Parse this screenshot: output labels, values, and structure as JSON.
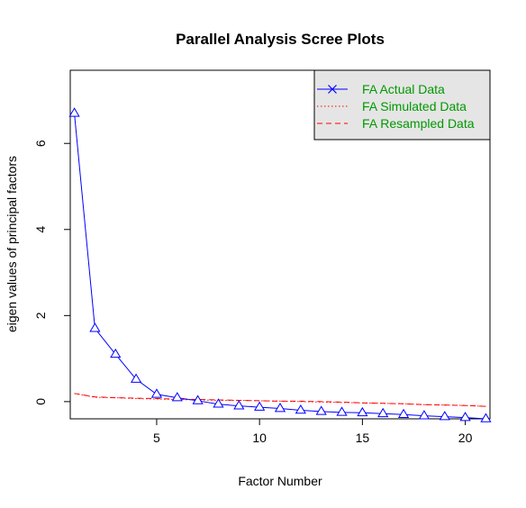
{
  "chart_data": {
    "type": "line",
    "title": "Parallel Analysis Scree Plots",
    "xlabel": "Factor Number",
    "ylabel": "eigen values of principal factors",
    "xlim": [
      0.8,
      21.2
    ],
    "ylim": [
      -0.4,
      7.7
    ],
    "x_ticks": [
      5,
      10,
      15,
      20
    ],
    "y_ticks": [
      0,
      2,
      4,
      6
    ],
    "grid": false,
    "legend_position": "top-right",
    "x": [
      1,
      2,
      3,
      4,
      5,
      6,
      7,
      8,
      9,
      10,
      11,
      12,
      13,
      14,
      15,
      16,
      17,
      18,
      19,
      20,
      21
    ],
    "series": [
      {
        "name": "FA  Actual Data",
        "color": "#0000ff",
        "line": "solid",
        "marker": "triangle",
        "values": [
          6.7,
          1.7,
          1.1,
          0.52,
          0.17,
          0.09,
          0.02,
          -0.06,
          -0.1,
          -0.13,
          -0.16,
          -0.2,
          -0.23,
          -0.25,
          -0.26,
          -0.28,
          -0.3,
          -0.33,
          -0.35,
          -0.37,
          -0.4
        ]
      },
      {
        "name": "FA  Simulated Data",
        "color": "#ff0000",
        "line": "dotted",
        "marker": "none",
        "values": [
          0.19,
          0.1,
          0.09,
          0.07,
          0.06,
          0.05,
          0.04,
          0.03,
          0.03,
          0.02,
          0.01,
          0.0,
          -0.01,
          -0.02,
          -0.03,
          -0.04,
          -0.05,
          -0.07,
          -0.08,
          -0.09,
          -0.11
        ]
      },
      {
        "name": "FA  Resampled Data",
        "color": "#ff0000",
        "line": "dashed",
        "marker": "none",
        "values": [
          0.19,
          0.11,
          0.09,
          0.08,
          0.07,
          0.06,
          0.05,
          0.04,
          0.03,
          0.02,
          0.01,
          0.01,
          0.0,
          -0.01,
          -0.03,
          -0.04,
          -0.05,
          -0.07,
          -0.08,
          -0.09,
          -0.11
        ]
      }
    ],
    "legend_symbol": "x",
    "legend_bg": "#e5e5e5"
  }
}
